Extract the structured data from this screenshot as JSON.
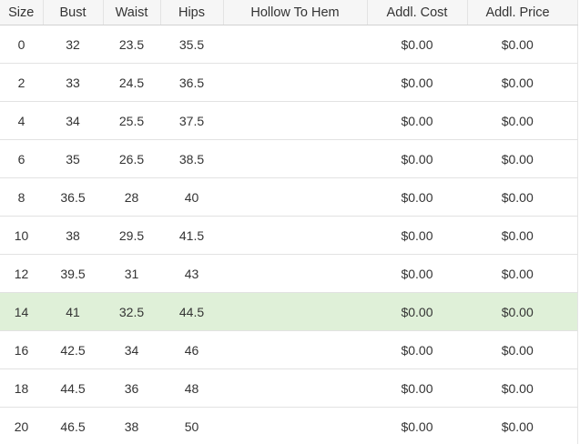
{
  "size_chart": {
    "columns": [
      {
        "key": "size",
        "label": "Size"
      },
      {
        "key": "bust",
        "label": "Bust"
      },
      {
        "key": "waist",
        "label": "Waist"
      },
      {
        "key": "hips",
        "label": "Hips"
      },
      {
        "key": "hollow_to_hem",
        "label": "Hollow To Hem"
      },
      {
        "key": "addl_cost",
        "label": "Addl. Cost"
      },
      {
        "key": "addl_price",
        "label": "Addl. Price"
      }
    ],
    "rows": [
      {
        "size": "0",
        "bust": "32",
        "waist": "23.5",
        "hips": "35.5",
        "hollow_to_hem": "",
        "addl_cost": "$0.00",
        "addl_price": "$0.00",
        "selected": false
      },
      {
        "size": "2",
        "bust": "33",
        "waist": "24.5",
        "hips": "36.5",
        "hollow_to_hem": "",
        "addl_cost": "$0.00",
        "addl_price": "$0.00",
        "selected": false
      },
      {
        "size": "4",
        "bust": "34",
        "waist": "25.5",
        "hips": "37.5",
        "hollow_to_hem": "",
        "addl_cost": "$0.00",
        "addl_price": "$0.00",
        "selected": false
      },
      {
        "size": "6",
        "bust": "35",
        "waist": "26.5",
        "hips": "38.5",
        "hollow_to_hem": "",
        "addl_cost": "$0.00",
        "addl_price": "$0.00",
        "selected": false
      },
      {
        "size": "8",
        "bust": "36.5",
        "waist": "28",
        "hips": "40",
        "hollow_to_hem": "",
        "addl_cost": "$0.00",
        "addl_price": "$0.00",
        "selected": false
      },
      {
        "size": "10",
        "bust": "38",
        "waist": "29.5",
        "hips": "41.5",
        "hollow_to_hem": "",
        "addl_cost": "$0.00",
        "addl_price": "$0.00",
        "selected": false
      },
      {
        "size": "12",
        "bust": "39.5",
        "waist": "31",
        "hips": "43",
        "hollow_to_hem": "",
        "addl_cost": "$0.00",
        "addl_price": "$0.00",
        "selected": false
      },
      {
        "size": "14",
        "bust": "41",
        "waist": "32.5",
        "hips": "44.5",
        "hollow_to_hem": "",
        "addl_cost": "$0.00",
        "addl_price": "$0.00",
        "selected": true
      },
      {
        "size": "16",
        "bust": "42.5",
        "waist": "34",
        "hips": "46",
        "hollow_to_hem": "",
        "addl_cost": "$0.00",
        "addl_price": "$0.00",
        "selected": false
      },
      {
        "size": "18",
        "bust": "44.5",
        "waist": "36",
        "hips": "48",
        "hollow_to_hem": "",
        "addl_cost": "$0.00",
        "addl_price": "$0.00",
        "selected": false
      },
      {
        "size": "20",
        "bust": "46.5",
        "waist": "38",
        "hips": "50",
        "hollow_to_hem": "",
        "addl_cost": "$0.00",
        "addl_price": "$0.00",
        "selected": false
      }
    ],
    "colors": {
      "selected_row_bg": "#dff0d8",
      "header_bg": "#f6f6f6",
      "header_border": "#d2d2d2",
      "row_border": "#e2e2e2",
      "text": "#333333"
    }
  }
}
